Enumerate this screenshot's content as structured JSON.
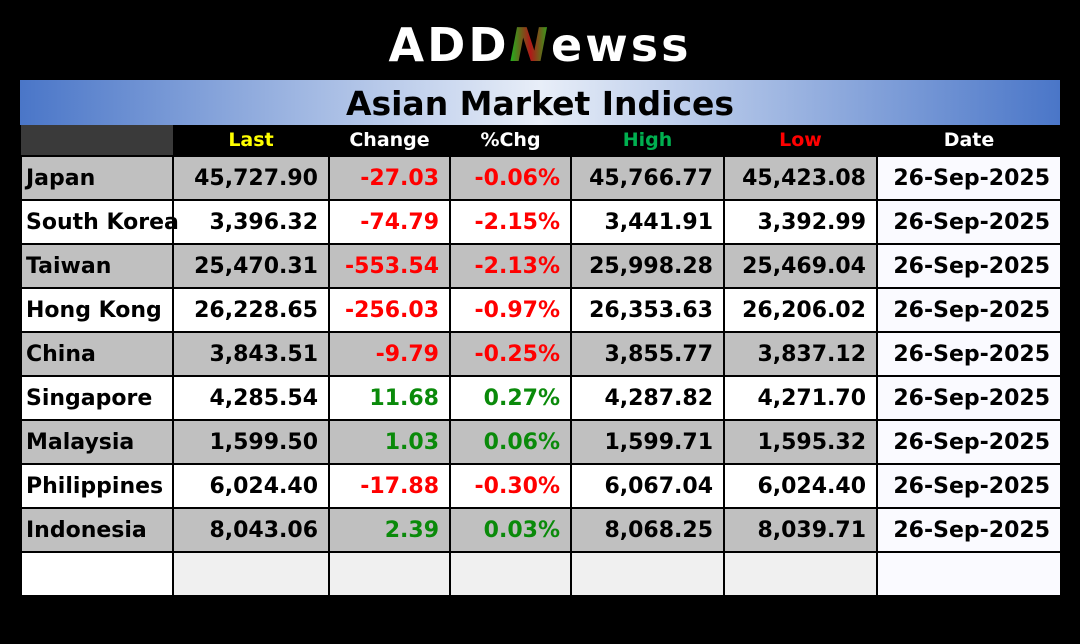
{
  "logo": {
    "left": "ADD",
    "n": "N",
    "right": "ewss"
  },
  "title": "Asian Market Indices",
  "columns": {
    "last": "Last",
    "change": "Change",
    "pchg": "%Chg",
    "high": "High",
    "low": "Low",
    "date": "Date"
  },
  "colors": {
    "last": "#ffff00",
    "high": "#00b050",
    "low": "#ff0000",
    "negative": "#ff0000",
    "positive": "#0a8a0a"
  },
  "rows": [
    {
      "name": "Japan",
      "last": "45,727.90",
      "change": "-27.03",
      "pchg": "-0.06%",
      "high": "45,766.77",
      "low": "45,423.08",
      "date": "26-Sep-2025"
    },
    {
      "name": "South Korea",
      "last": "3,396.32",
      "change": "-74.79",
      "pchg": "-2.15%",
      "high": "3,441.91",
      "low": "3,392.99",
      "date": "26-Sep-2025"
    },
    {
      "name": "Taiwan",
      "last": "25,470.31",
      "change": "-553.54",
      "pchg": "-2.13%",
      "high": "25,998.28",
      "low": "25,469.04",
      "date": "26-Sep-2025"
    },
    {
      "name": "Hong Kong",
      "last": "26,228.65",
      "change": "-256.03",
      "pchg": "-0.97%",
      "high": "26,353.63",
      "low": "26,206.02",
      "date": "26-Sep-2025"
    },
    {
      "name": "China",
      "last": "3,843.51",
      "change": "-9.79",
      "pchg": "-0.25%",
      "high": "3,855.77",
      "low": "3,837.12",
      "date": "26-Sep-2025"
    },
    {
      "name": "Singapore",
      "last": "4,285.54",
      "change": "11.68",
      "pchg": "0.27%",
      "high": "4,287.82",
      "low": "4,271.70",
      "date": "26-Sep-2025"
    },
    {
      "name": "Malaysia",
      "last": "1,599.50",
      "change": "1.03",
      "pchg": "0.06%",
      "high": "1,599.71",
      "low": "1,595.32",
      "date": "26-Sep-2025"
    },
    {
      "name": "Philippines",
      "last": "6,024.40",
      "change": "-17.88",
      "pchg": "-0.30%",
      "high": "6,067.04",
      "low": "6,024.40",
      "date": "26-Sep-2025"
    },
    {
      "name": "Indonesia",
      "last": "8,043.06",
      "change": "2.39",
      "pchg": "0.03%",
      "high": "8,068.25",
      "low": "8,039.71",
      "date": "26-Sep-2025"
    }
  ]
}
